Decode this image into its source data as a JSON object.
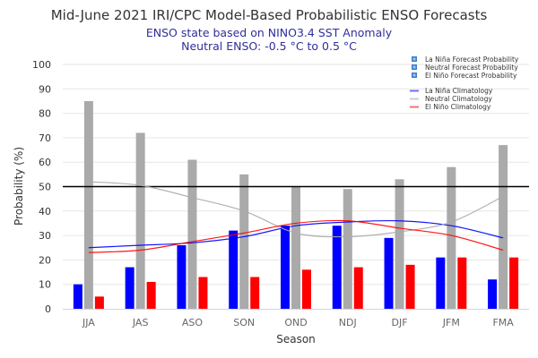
{
  "chart_data": {
    "type": "bar",
    "title": "Mid-June 2021 IRI/CPC Model-Based Probabilistic ENSO Forecasts",
    "subtitle_lines": [
      "ENSO state based on NINO3.4 SST Anomaly",
      "Neutral ENSO: -0.5 °C to 0.5 °C"
    ],
    "xlabel": "Season",
    "ylabel": "Probability (%)",
    "ylim": [
      0,
      100
    ],
    "yticks": [
      0,
      10,
      20,
      30,
      40,
      50,
      60,
      70,
      80,
      90,
      100
    ],
    "reference_line": 50,
    "grid": true,
    "legend_position": "top-right",
    "categories": [
      "JJA",
      "JAS",
      "ASO",
      "SON",
      "OND",
      "NDJ",
      "DJF",
      "JFM",
      "FMA"
    ],
    "series": [
      {
        "name": "La Niña Forecast Probability",
        "kind": "bar",
        "color": "#0000ff",
        "values": [
          10,
          17,
          26,
          32,
          34,
          34,
          29,
          21,
          12
        ]
      },
      {
        "name": "Neutral Forecast Probability",
        "kind": "bar",
        "color": "#aaaaaa",
        "values": [
          85,
          72,
          61,
          55,
          50,
          49,
          53,
          58,
          67
        ]
      },
      {
        "name": "El Niño Forecast Probability",
        "kind": "bar",
        "color": "#ff0000",
        "values": [
          5,
          11,
          13,
          13,
          16,
          17,
          18,
          21,
          21
        ]
      },
      {
        "name": "La Niña Climatology",
        "kind": "line",
        "color": "#0000ff",
        "values": [
          25,
          26,
          27,
          29.5,
          34,
          35.5,
          36,
          34,
          29
        ]
      },
      {
        "name": "Neutral Climatology",
        "kind": "line",
        "color": "#aaaaaa",
        "values": [
          52,
          50.5,
          45.5,
          40,
          31,
          29.5,
          31.5,
          35.5,
          46
        ]
      },
      {
        "name": "El Niño Climatology",
        "kind": "line",
        "color": "#ff0000",
        "values": [
          23,
          24,
          27.5,
          31,
          35,
          36,
          33,
          30,
          24
        ]
      }
    ],
    "legend": {
      "forecast_icon_color": "#3a7fc8",
      "items": [
        {
          "label": "La Niña Forecast Probability",
          "symbol": "square"
        },
        {
          "label": "Neutral Forecast Probability",
          "symbol": "square"
        },
        {
          "label": "El Niño Forecast Probability",
          "symbol": "square"
        },
        {
          "label": "La Niña Climatology",
          "symbol": "line",
          "color": "#6f6ff7"
        },
        {
          "label": "Neutral Climatology",
          "symbol": "line",
          "color": "#cccccc"
        },
        {
          "label": "El Niño Climatology",
          "symbol": "line",
          "color": "#f77070"
        }
      ]
    }
  }
}
